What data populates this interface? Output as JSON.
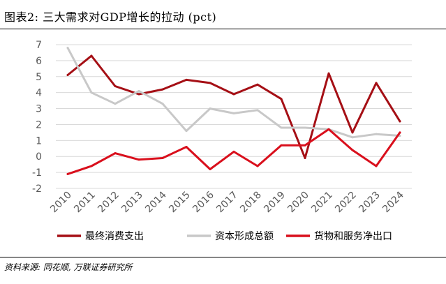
{
  "header": {
    "title": "图表2: 三大需求对GDP增长的拉动 (pct)"
  },
  "footer": {
    "source": "资料来源: 同花顺, 万联证券研究所"
  },
  "chart_data": {
    "type": "line",
    "x": [
      "2010",
      "2011",
      "2012",
      "2013",
      "2014",
      "2015",
      "2016",
      "2017",
      "2018",
      "2019",
      "2020",
      "2021",
      "2022",
      "2023",
      "2024"
    ],
    "ylim": [
      -2,
      7
    ],
    "yticks": [
      -2,
      -1,
      0,
      1,
      2,
      3,
      4,
      5,
      6,
      7
    ],
    "grid": true,
    "legend_position": "bottom",
    "series": [
      {
        "name": "最终消费支出",
        "color": "#A50F15",
        "values": [
          5.1,
          6.3,
          4.4,
          3.9,
          4.2,
          4.8,
          4.6,
          3.9,
          4.5,
          3.6,
          -0.1,
          5.2,
          1.5,
          4.6,
          2.2
        ]
      },
      {
        "name": "资本形成总额",
        "color": "#C8C8C8",
        "values": [
          6.8,
          4.0,
          3.3,
          4.1,
          3.3,
          1.6,
          3.0,
          2.7,
          2.9,
          1.8,
          1.8,
          1.7,
          1.2,
          1.4,
          1.3
        ]
      },
      {
        "name": "货物和服务净出口",
        "color": "#D90F1C",
        "values": [
          -1.1,
          -0.6,
          0.2,
          -0.2,
          -0.1,
          0.6,
          -0.8,
          0.3,
          -0.6,
          0.7,
          0.7,
          1.7,
          0.4,
          -0.6,
          1.5
        ]
      }
    ]
  }
}
